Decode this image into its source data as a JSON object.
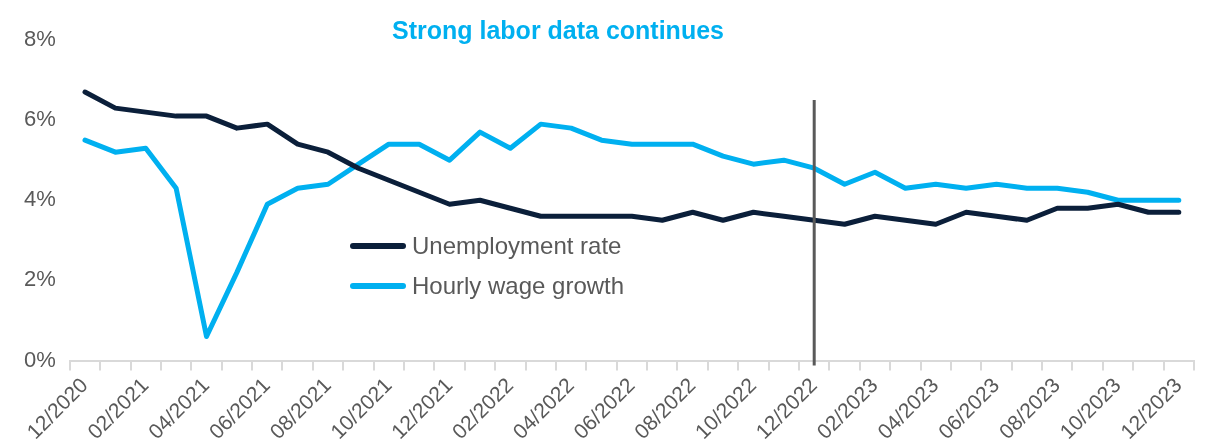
{
  "chart_data": {
    "type": "line",
    "title": "Strong labor data continues",
    "categories": [
      "12/2020",
      null,
      "02/2021",
      null,
      "04/2021",
      null,
      "06/2021",
      null,
      "08/2021",
      null,
      "10/2021",
      null,
      "12/2021",
      null,
      "02/2022",
      null,
      "04/2022",
      null,
      "06/2022",
      null,
      "08/2022",
      null,
      "10/2022",
      null,
      "12/2022",
      null,
      "02/2023",
      null,
      "04/2023",
      null,
      "06/2023",
      null,
      "08/2023",
      null,
      "10/2023",
      null,
      "12/2023"
    ],
    "series": [
      {
        "name": "Unemployment rate",
        "color": "#0b1f3a",
        "values": [
          6.7,
          6.3,
          6.2,
          6.1,
          6.1,
          5.8,
          5.9,
          5.4,
          5.2,
          4.8,
          4.5,
          4.2,
          3.9,
          4.0,
          3.8,
          3.6,
          3.6,
          3.6,
          3.6,
          3.5,
          3.7,
          3.5,
          3.7,
          3.6,
          3.5,
          3.4,
          3.6,
          3.5,
          3.4,
          3.7,
          3.6,
          3.5,
          3.8,
          3.8,
          3.9,
          3.7,
          3.7
        ]
      },
      {
        "name": "Hourly wage growth",
        "color": "#00b0f0",
        "values": [
          5.5,
          5.2,
          5.3,
          4.3,
          0.6,
          2.2,
          3.9,
          4.3,
          4.4,
          4.9,
          5.4,
          5.4,
          5.0,
          5.7,
          5.3,
          5.9,
          5.8,
          5.5,
          5.4,
          5.4,
          5.4,
          5.1,
          4.9,
          5.0,
          4.8,
          4.4,
          4.7,
          4.3,
          4.4,
          4.3,
          4.4,
          4.3,
          4.3,
          4.2,
          4.0,
          4.0,
          4.0
        ]
      }
    ],
    "ylim": [
      0,
      8
    ],
    "yticks": [
      {
        "value": 0,
        "label": "0%"
      },
      {
        "value": 2,
        "label": "2%"
      },
      {
        "value": 4,
        "label": "4%"
      },
      {
        "value": 6,
        "label": "6%"
      },
      {
        "value": 8,
        "label": "8%"
      }
    ],
    "grid": false,
    "legend": "bottom left",
    "marker": "none",
    "line_style": "solid",
    "ref_lines": [
      {
        "axis": "x",
        "value": "12/2022",
        "color": "#595959"
      }
    ]
  }
}
